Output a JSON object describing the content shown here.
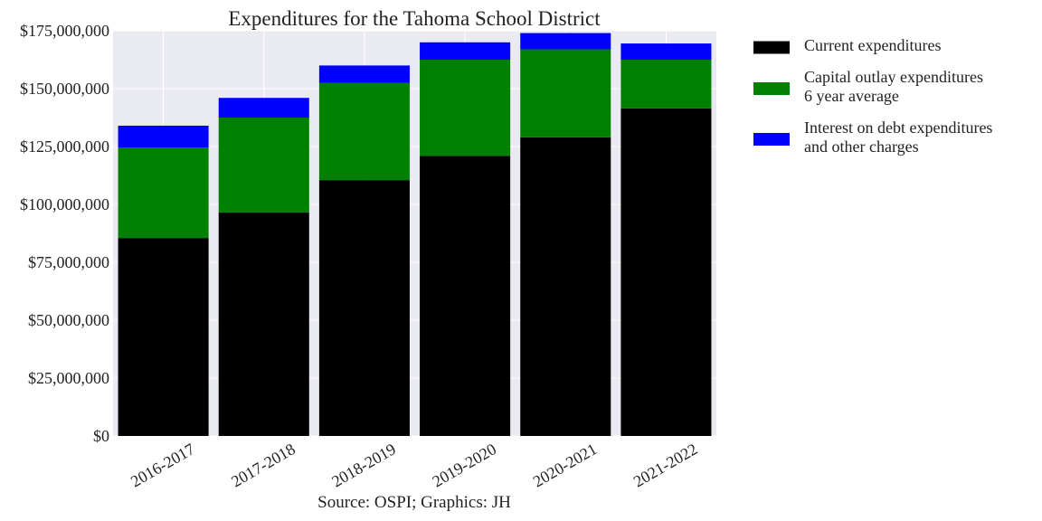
{
  "chart_data": {
    "type": "bar",
    "stacked": true,
    "title": "Expenditures for the Tahoma School District",
    "caption": "Source: OSPI; Graphics: JH",
    "xlabel": "",
    "ylabel": "",
    "categories": [
      "2016-2017",
      "2017-2018",
      "2018-2019",
      "2019-2020",
      "2020-2021",
      "2021-2022"
    ],
    "series": [
      {
        "name": "Current expenditures",
        "color": "#000000",
        "values": [
          85500000,
          96500000,
          110500000,
          121000000,
          129000000,
          141500000
        ]
      },
      {
        "name": "Capital outlay expenditures 6 year average",
        "name_lines": [
          "Capital outlay expenditures",
          "6 year average"
        ],
        "color": "#008000",
        "values": [
          39000000,
          41000000,
          42000000,
          41500000,
          38000000,
          21000000
        ]
      },
      {
        "name": "Interest on debt expenditures and other charges",
        "name_lines": [
          "Interest on debt expenditures",
          "and other charges"
        ],
        "color": "#0000ff",
        "values": [
          9500000,
          8500000,
          7500000,
          7500000,
          7000000,
          7000000
        ]
      }
    ],
    "ylim": [
      0,
      175000000
    ],
    "yticks": [
      0,
      25000000,
      50000000,
      75000000,
      100000000,
      125000000,
      150000000,
      175000000
    ],
    "ytick_labels": [
      "$0",
      "$25,000,000",
      "$50,000,000",
      "$75,000,000",
      "$100,000,000",
      "$125,000,000",
      "$150,000,000",
      "$175,000,000"
    ],
    "grid": true,
    "plot_background": "#eaeaf2",
    "grid_color": "#ffffff",
    "legend_position": "outside-right-top"
  }
}
